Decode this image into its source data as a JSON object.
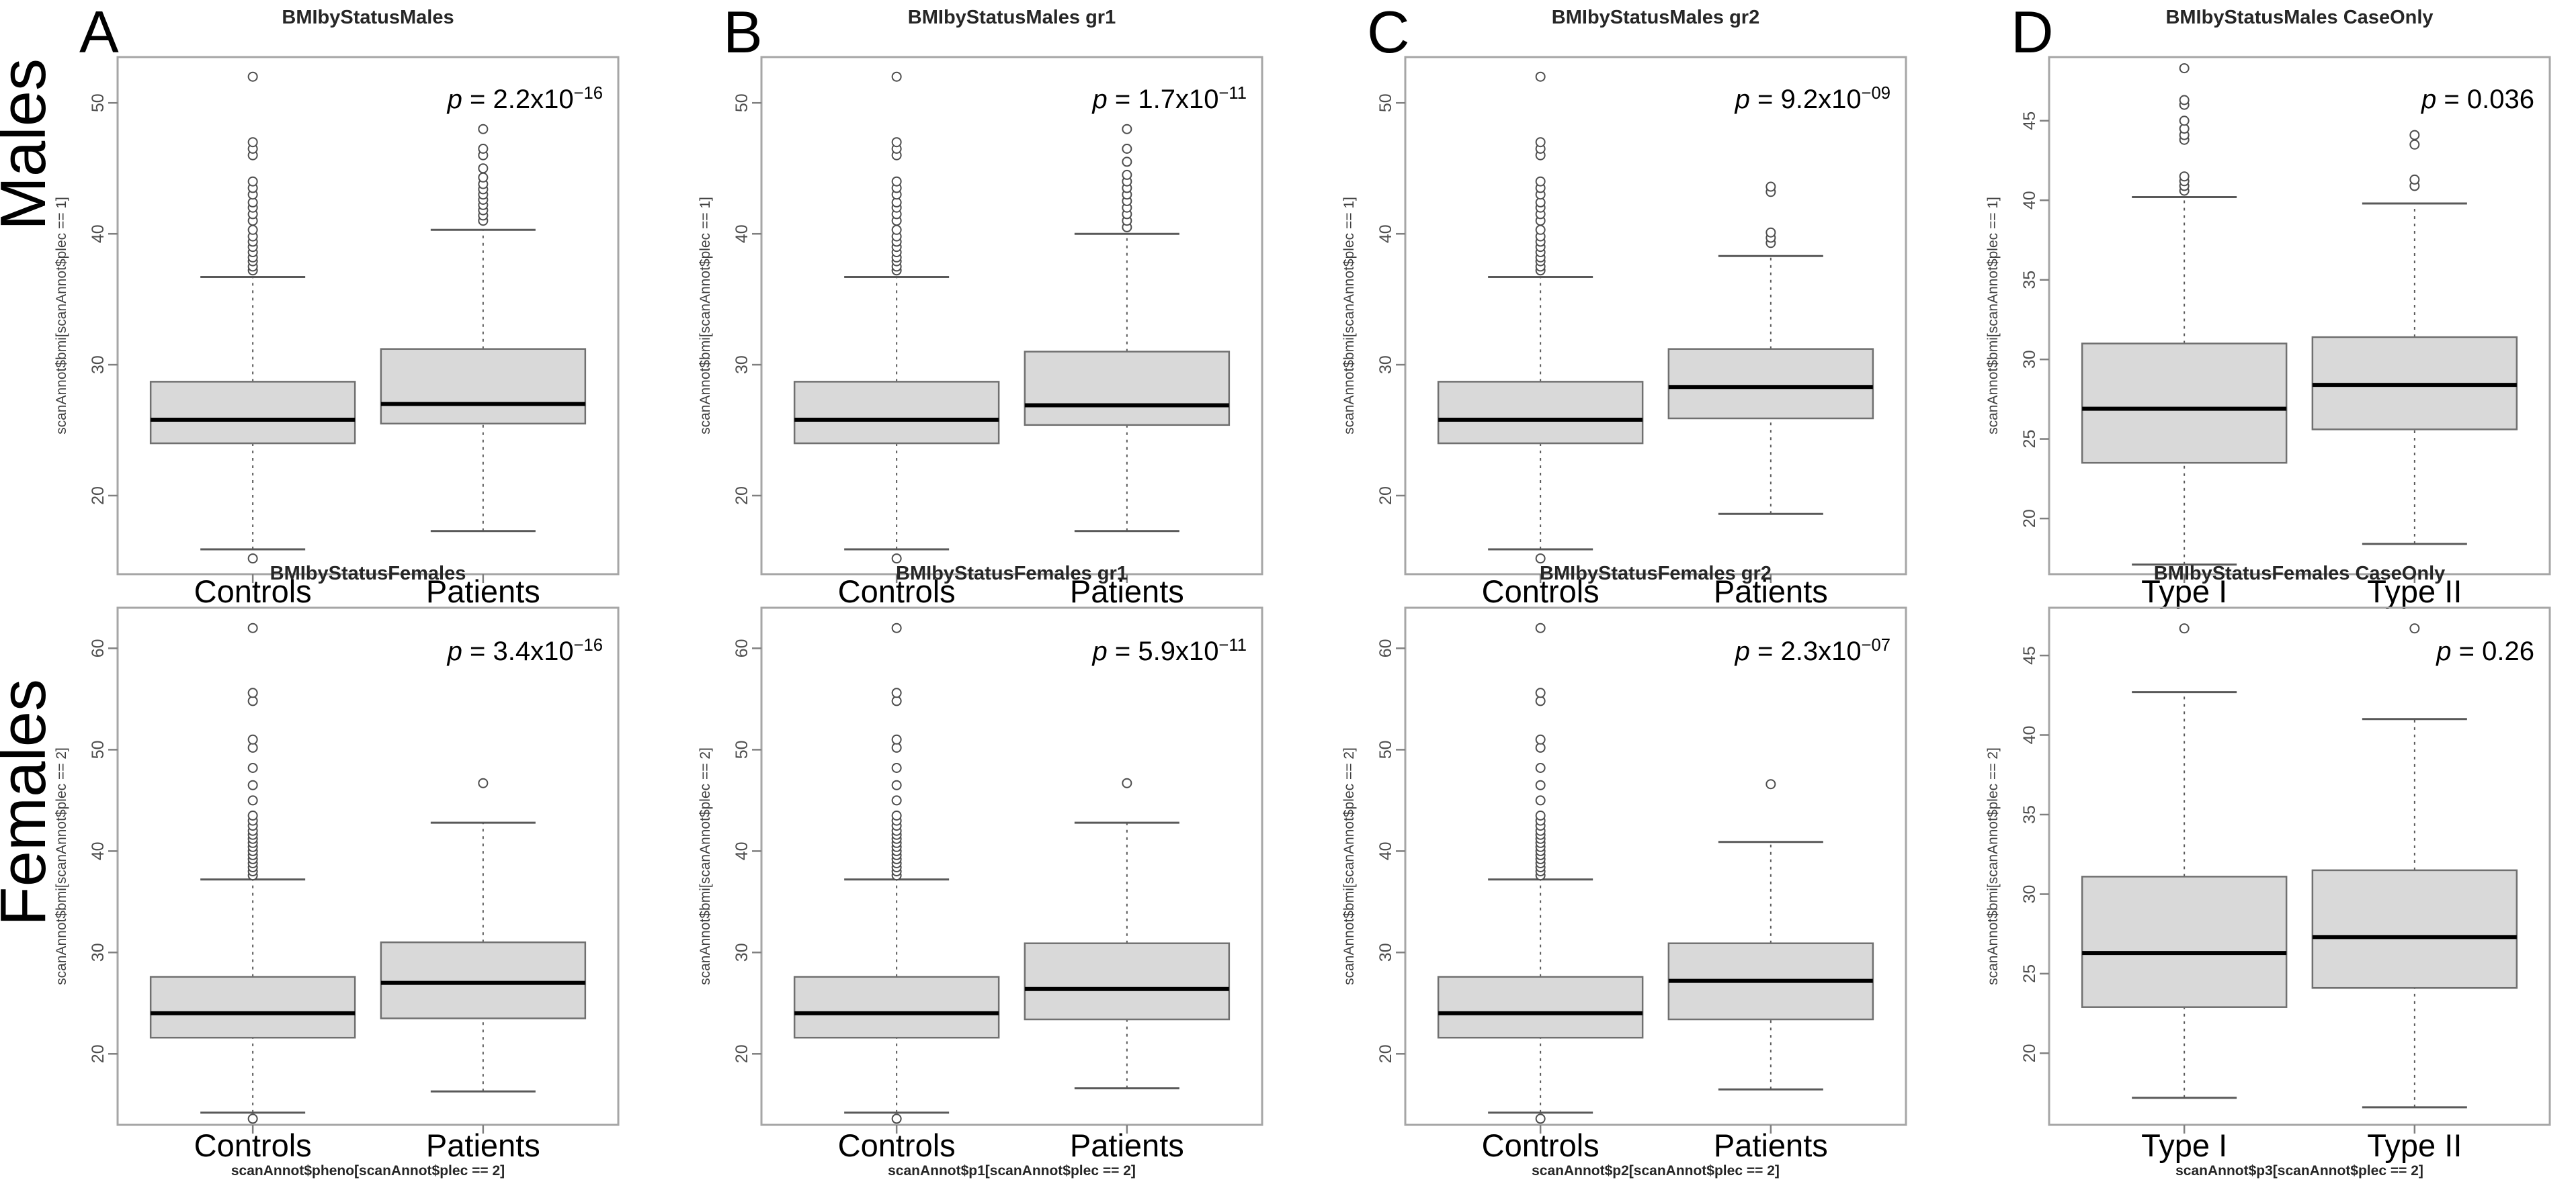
{
  "rows": [
    {
      "label": "Males"
    },
    {
      "label": "Females"
    }
  ],
  "chart_data": {
    "type": "boxplot",
    "layout": "2 rows x 4 columns, R-style base graphics",
    "box_fill": "#d9d9d9",
    "box_border": "#707070",
    "median_color": "#000000",
    "panels": [
      {
        "letter": "A",
        "row": 0,
        "col": 0,
        "title": "BMIbyStatusMales",
        "p": {
          "sym": "p",
          "eq": " = ",
          "base": "2.2x10",
          "exp": "−16"
        },
        "ylabel": "scanAnnot$bmi[scanAnnot$plec == 1]",
        "caption": "",
        "categories": [
          "Controls",
          "Patients"
        ],
        "ylim": [
          14,
          53.5
        ],
        "yticks": [
          20,
          30,
          40,
          50
        ],
        "boxes": [
          {
            "label": "Controls",
            "whisker_low": 15.9,
            "q1": 24,
            "median": 25.8,
            "q3": 28.7,
            "whisker_high": 36.7,
            "outliers_high": [
              37.2,
              37.5,
              37.9,
              38.2,
              38.6,
              39,
              39.4,
              39.8,
              40.3,
              41,
              41.5,
              42,
              42.4,
              43,
              43.5,
              44,
              46,
              46.5,
              47,
              52
            ],
            "outliers_low": [
              15.2
            ]
          },
          {
            "label": "Patients",
            "whisker_low": 17.3,
            "q1": 25.5,
            "median": 27,
            "q3": 31.2,
            "whisker_high": 40.3,
            "outliers_high": [
              41,
              41.4,
              41.8,
              42.2,
              42.6,
              43,
              43.4,
              43.8,
              44.3,
              45,
              46,
              46.5,
              48
            ],
            "outliers_low": []
          }
        ]
      },
      {
        "letter": "B",
        "row": 0,
        "col": 1,
        "title": "BMIbyStatusMales gr1",
        "p": {
          "sym": "p",
          "eq": " = ",
          "base": "1.7x10",
          "exp": "−11"
        },
        "ylabel": "scanAnnot$bmi[scanAnnot$plec == 1]",
        "caption": "",
        "categories": [
          "Controls",
          "Patients"
        ],
        "ylim": [
          14,
          53.5
        ],
        "yticks": [
          20,
          30,
          40,
          50
        ],
        "boxes": [
          {
            "label": "Controls",
            "whisker_low": 15.9,
            "q1": 24,
            "median": 25.8,
            "q3": 28.7,
            "whisker_high": 36.7,
            "outliers_high": [
              37.2,
              37.5,
              37.9,
              38.2,
              38.6,
              39,
              39.4,
              39.8,
              40.3,
              41,
              41.5,
              42,
              42.4,
              43,
              43.5,
              44,
              46,
              46.5,
              47,
              52
            ],
            "outliers_low": [
              15.2
            ]
          },
          {
            "label": "Patients",
            "whisker_low": 17.3,
            "q1": 25.4,
            "median": 26.9,
            "q3": 31,
            "whisker_high": 40,
            "outliers_high": [
              40.5,
              41,
              41.5,
              42,
              42.5,
              43,
              43.5,
              44,
              44.5,
              45.5,
              46.5,
              48
            ],
            "outliers_low": []
          }
        ]
      },
      {
        "letter": "C",
        "row": 0,
        "col": 2,
        "title": "BMIbyStatusMales gr2",
        "p": {
          "sym": "p",
          "eq": " = ",
          "base": "9.2x10",
          "exp": "−09"
        },
        "ylabel": "scanAnnot$bmi[scanAnnot$plec == 1]",
        "caption": "",
        "categories": [
          "Controls",
          "Patients"
        ],
        "ylim": [
          14,
          53.5
        ],
        "yticks": [
          20,
          30,
          40,
          50
        ],
        "boxes": [
          {
            "label": "Controls",
            "whisker_low": 15.9,
            "q1": 24,
            "median": 25.8,
            "q3": 28.7,
            "whisker_high": 36.7,
            "outliers_high": [
              37.2,
              37.5,
              37.9,
              38.2,
              38.6,
              39,
              39.4,
              39.8,
              40.3,
              41,
              41.5,
              42,
              42.4,
              43,
              43.5,
              44,
              46,
              46.5,
              47,
              52
            ],
            "outliers_low": [
              15.2
            ]
          },
          {
            "label": "Patients",
            "whisker_low": 18.6,
            "q1": 25.9,
            "median": 28.3,
            "q3": 31.2,
            "whisker_high": 38.3,
            "outliers_high": [
              39.3,
              39.7,
              40.1,
              43.2,
              43.6
            ],
            "outliers_low": []
          }
        ]
      },
      {
        "letter": "D",
        "row": 0,
        "col": 3,
        "title": "BMIbyStatusMales CaseOnly",
        "p": {
          "sym": "p",
          "eq": " = ",
          "base": "0.036",
          "exp": ""
        },
        "ylabel": "scanAnnot$bmi[scanAnnot$plec == 1]",
        "caption": "",
        "categories": [
          "Type I",
          "Type II"
        ],
        "ylim": [
          16.5,
          49
        ],
        "yticks": [
          20,
          25,
          30,
          35,
          40,
          45
        ],
        "boxes": [
          {
            "label": "Type I",
            "whisker_low": 17.1,
            "q1": 23.5,
            "median": 26.9,
            "q3": 31,
            "whisker_high": 40.2,
            "outliers_high": [
              40.6,
              40.9,
              41.2,
              41.5,
              43.8,
              44.1,
              44.5,
              45,
              46,
              46.3,
              48.3
            ],
            "outliers_low": []
          },
          {
            "label": "Type II",
            "whisker_low": 18.4,
            "q1": 25.6,
            "median": 28.4,
            "q3": 31.4,
            "whisker_high": 39.8,
            "outliers_high": [
              40.9,
              41.3,
              43.5,
              44.1
            ],
            "outliers_low": []
          }
        ]
      },
      {
        "row": 1,
        "col": 0,
        "title": "BMIbyStatusFemales",
        "p": {
          "sym": "p",
          "eq": " = ",
          "base": "3.4x10",
          "exp": "−16"
        },
        "ylabel": "scanAnnot$bmi[scanAnnot$plec == 2]",
        "caption": "scanAnnot$pheno[scanAnnot$plec == 2]",
        "categories": [
          "Controls",
          "Patients"
        ],
        "ylim": [
          13,
          64
        ],
        "yticks": [
          20,
          30,
          40,
          50,
          60
        ],
        "boxes": [
          {
            "label": "Controls",
            "whisker_low": 14.2,
            "q1": 21.6,
            "median": 24,
            "q3": 27.6,
            "whisker_high": 37.2,
            "outliers_high": [
              37.6,
              38,
              38.4,
              38.8,
              39.2,
              39.6,
              40,
              40.4,
              40.8,
              41.2,
              41.6,
              42,
              42.5,
              43,
              43.5,
              45,
              46.5,
              48.2,
              50.2,
              51,
              54.8,
              55.6,
              62
            ],
            "outliers_low": [
              13.6
            ]
          },
          {
            "label": "Patients",
            "whisker_low": 16.3,
            "q1": 23.5,
            "median": 27,
            "q3": 31,
            "whisker_high": 42.8,
            "outliers_high": [
              46.7
            ],
            "outliers_low": []
          }
        ]
      },
      {
        "row": 1,
        "col": 1,
        "title": "BMIbyStatusFemales gr1",
        "p": {
          "sym": "p",
          "eq": " = ",
          "base": "5.9x10",
          "exp": "−11"
        },
        "ylabel": "scanAnnot$bmi[scanAnnot$plec == 2]",
        "caption": "scanAnnot$p1[scanAnnot$plec == 2]",
        "categories": [
          "Controls",
          "Patients"
        ],
        "ylim": [
          13,
          64
        ],
        "yticks": [
          20,
          30,
          40,
          50,
          60
        ],
        "boxes": [
          {
            "label": "Controls",
            "whisker_low": 14.2,
            "q1": 21.6,
            "median": 24,
            "q3": 27.6,
            "whisker_high": 37.2,
            "outliers_high": [
              37.6,
              38,
              38.4,
              38.8,
              39.2,
              39.6,
              40,
              40.4,
              40.8,
              41.2,
              41.6,
              42,
              42.5,
              43,
              43.5,
              45,
              46.5,
              48.2,
              50.2,
              51,
              54.8,
              55.6,
              62
            ],
            "outliers_low": [
              13.6
            ]
          },
          {
            "label": "Patients",
            "whisker_low": 16.6,
            "q1": 23.4,
            "median": 26.4,
            "q3": 30.9,
            "whisker_high": 42.8,
            "outliers_high": [
              46.7
            ],
            "outliers_low": []
          }
        ]
      },
      {
        "row": 1,
        "col": 2,
        "title": "BMIbyStatusFemales gr2",
        "p": {
          "sym": "p",
          "eq": " = ",
          "base": "2.3x10",
          "exp": "−07"
        },
        "ylabel": "scanAnnot$bmi[scanAnnot$plec == 2]",
        "caption": "scanAnnot$p2[scanAnnot$plec == 2]",
        "categories": [
          "Controls",
          "Patients"
        ],
        "ylim": [
          13,
          64
        ],
        "yticks": [
          20,
          30,
          40,
          50,
          60
        ],
        "boxes": [
          {
            "label": "Controls",
            "whisker_low": 14.2,
            "q1": 21.6,
            "median": 24,
            "q3": 27.6,
            "whisker_high": 37.2,
            "outliers_high": [
              37.6,
              38,
              38.4,
              38.8,
              39.2,
              39.6,
              40,
              40.4,
              40.8,
              41.2,
              41.6,
              42,
              42.5,
              43,
              43.5,
              45,
              46.5,
              48.2,
              50.2,
              51,
              54.8,
              55.6,
              62
            ],
            "outliers_low": [
              13.6
            ]
          },
          {
            "label": "Patients",
            "whisker_low": 16.5,
            "q1": 23.4,
            "median": 27.2,
            "q3": 30.9,
            "whisker_high": 40.9,
            "outliers_high": [
              46.6
            ],
            "outliers_low": []
          }
        ]
      },
      {
        "row": 1,
        "col": 3,
        "title": "BMIbyStatusFemales CaseOnly",
        "p": {
          "sym": "p",
          "eq": " = ",
          "base": "0.26",
          "exp": ""
        },
        "ylabel": "scanAnnot$bmi[scanAnnot$plec == 2]",
        "caption": "scanAnnot$p3[scanAnnot$plec == 2]",
        "categories": [
          "Type I",
          "Type II"
        ],
        "ylim": [
          15.5,
          48
        ],
        "yticks": [
          20,
          25,
          30,
          35,
          40,
          45
        ],
        "boxes": [
          {
            "label": "Type I",
            "whisker_low": 17.2,
            "q1": 22.9,
            "median": 26.3,
            "q3": 31.1,
            "whisker_high": 42.7,
            "outliers_high": [
              46.7
            ],
            "outliers_low": []
          },
          {
            "label": "Type II",
            "whisker_low": 16.6,
            "q1": 24.1,
            "median": 27.3,
            "q3": 31.5,
            "whisker_high": 41,
            "outliers_high": [
              46.7
            ],
            "outliers_low": []
          }
        ]
      }
    ]
  }
}
